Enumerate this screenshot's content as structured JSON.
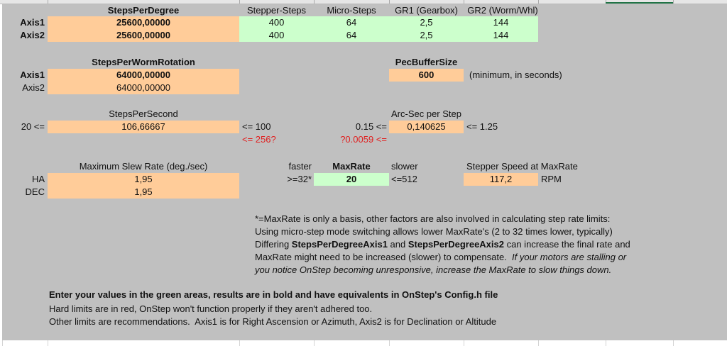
{
  "colors": {
    "input_green": "#ccffcc",
    "result_orange": "#ffcc99",
    "background_gray": "#c0c0c0",
    "hard_limit_red": "#e02020"
  },
  "steps_per_degree": {
    "header": "StepsPerDegree",
    "axis1_label": "Axis1",
    "axis2_label": "Axis2",
    "axis1": "25600,00000",
    "axis2": "25600,00000"
  },
  "inputs": {
    "headers": [
      "Stepper-Steps",
      "Micro-Steps",
      "GR1 (Gearbox)",
      "GR2 (Worm/Whl)"
    ],
    "axis1": [
      "400",
      "64",
      "2,5",
      "144"
    ],
    "axis2": [
      "400",
      "64",
      "2,5",
      "144"
    ]
  },
  "worm": {
    "header": "StepsPerWormRotation",
    "axis1_label": "Axis1",
    "axis2_label": "Axis2",
    "axis1": "64000,00000",
    "axis2": "64000,00000"
  },
  "pec": {
    "header": "PecBufferSize",
    "value": "600",
    "note": "(minimum, in seconds)"
  },
  "steps_per_second": {
    "header": "StepsPerSecond",
    "min": "20 <=",
    "value": "106,66667",
    "max": "<= 100",
    "hard_max": "<= 256?"
  },
  "arcsec": {
    "header": "Arc-Sec per Step",
    "min": "0.15 <=",
    "value": "0,140625",
    "max": "<= 1.25",
    "hard_min": "?0.0059 <="
  },
  "slew": {
    "header": "Maximum Slew Rate (deg./sec)",
    "ha_label": "HA",
    "dec_label": "DEC",
    "ha": "1,95",
    "dec": "1,95"
  },
  "maxrate": {
    "faster": "faster",
    "header": "MaxRate",
    "slower": "slower",
    "min": ">=32*",
    "value": "20",
    "max": "<=512"
  },
  "speed": {
    "header": "Stepper Speed at MaxRate",
    "value": "117,2",
    "unit": "RPM"
  },
  "notes": {
    "line1": "*=MaxRate is only a basis, other factors are also involved in calculating step rate limits:",
    "line2": "Using micro-step mode switching allows lower MaxRate's (2 to 32 times lower, typically)",
    "line3_a": "Differing ",
    "line3_b": "StepsPerDegreeAxis1",
    "line3_c": " and ",
    "line3_d": "StepsPerDegreeAxis2",
    "line3_e": " can increase the final rate and",
    "line4_a": "MaxRate might need to be increased (slower) to compensate.  ",
    "line4_b": "If your motors are stalling or",
    "line5": "you notice OnStep becoming unresponsive, increase the MaxRate to slow things down."
  },
  "footer": {
    "line1": "Enter your values in the green areas, results are in bold and have equivalents in OnStep's Config.h file",
    "line2": "Hard limits are in red, OnStep won't function properly if they aren't adhered too.",
    "line3": "Other limits are recommendations.  Axis1 is for Right Ascension or Azimuth, Axis2 is for Declination or Altitude"
  }
}
